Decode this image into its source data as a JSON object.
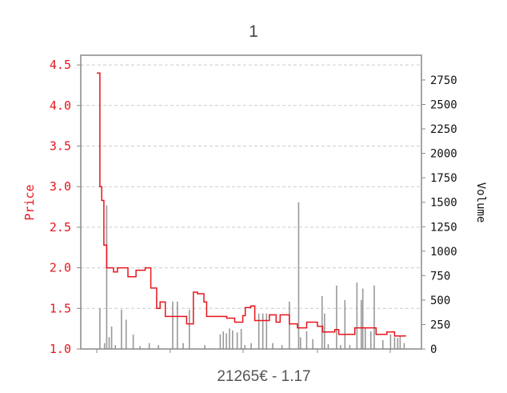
{
  "title": "1",
  "footer": "21265€ - 1.17",
  "chart_data": {
    "type": "line+bar",
    "title": "1",
    "xlabel": "",
    "x_ticks_labeled": false,
    "grid": "horizontal dashed",
    "colors": {
      "price": "#e8141c",
      "volume": "#999999",
      "axis": "#888888",
      "grid": "#cccccc"
    },
    "y_left": {
      "label": "Price",
      "lim": [
        1.0,
        4.55
      ],
      "ticks": [
        "1.0",
        "1.5",
        "2.0",
        "2.5",
        "3.0",
        "3.5",
        "4.0",
        "4.5"
      ]
    },
    "y_right": {
      "label": "Volume",
      "lim": [
        0,
        2750
      ],
      "ticks": [
        "0",
        "250",
        "500",
        "750",
        "1000",
        "1250",
        "1500",
        "1750",
        "2000",
        "2250",
        "2500",
        "2750"
      ]
    },
    "xlim": [
      -5.2,
      105.2
    ],
    "price": {
      "name": "Price",
      "x": [
        0,
        1,
        1.6,
        2.3,
        3.2,
        5.4,
        6.7,
        10.1,
        12.7,
        15.7,
        17.5,
        18.3,
        19.4,
        20.5,
        22.2,
        26.5,
        29.1,
        31.3,
        32.6,
        34.7,
        35.6,
        42.1,
        44.7,
        47.3,
        48.1,
        49.9,
        51.2,
        54.2,
        55.9,
        58.1,
        59.4,
        61.1,
        62.4,
        65,
        68,
        71.5,
        73.2,
        77.1,
        78.4,
        80.1,
        83.6,
        88.8,
        90.5,
        94,
        96.5,
        100
      ],
      "y": [
        4.4,
        3.0,
        2.83,
        2.28,
        2.0,
        1.95,
        2.0,
        1.89,
        1.97,
        2.0,
        1.75,
        1.75,
        1.5,
        1.58,
        1.4,
        1.4,
        1.31,
        1.7,
        1.68,
        1.58,
        1.4,
        1.38,
        1.33,
        1.41,
        1.51,
        1.53,
        1.35,
        1.35,
        1.42,
        1.33,
        1.42,
        1.42,
        1.31,
        1.26,
        1.33,
        1.28,
        1.21,
        1.24,
        1.18,
        1.18,
        1.26,
        1.26,
        1.18,
        1.21,
        1.16,
        1.17
      ]
    },
    "volume": {
      "name": "Volume",
      "x": [
        1,
        2.5,
        3.2,
        4,
        4.8,
        6,
        8,
        9.5,
        11.8,
        14,
        17,
        20,
        24.6,
        26.1,
        28,
        30,
        35,
        40,
        41,
        42,
        43,
        44,
        45.5,
        46.8,
        48,
        50,
        52.5,
        53.8,
        55,
        57,
        60,
        62.4,
        65.4,
        66,
        68,
        70,
        73,
        73.8,
        75,
        77.7,
        79,
        80.4,
        82,
        84.3,
        85.7,
        86.2,
        87,
        88.8,
        89.9,
        92.7,
        95.2,
        96.5,
        97.5,
        98.3,
        99.6
      ],
      "y": [
        417,
        60,
        1467,
        120,
        229,
        40,
        403,
        300,
        147,
        30,
        60,
        40,
        485,
        485,
        60,
        400,
        40,
        150,
        180,
        160,
        210,
        190,
        170,
        205,
        40,
        60,
        363,
        363,
        363,
        60,
        40,
        485,
        1500,
        120,
        180,
        100,
        540,
        363,
        50,
        649,
        40,
        500,
        40,
        679,
        500,
        617,
        220,
        180,
        649,
        90,
        150,
        120,
        110,
        130,
        60
      ]
    }
  }
}
